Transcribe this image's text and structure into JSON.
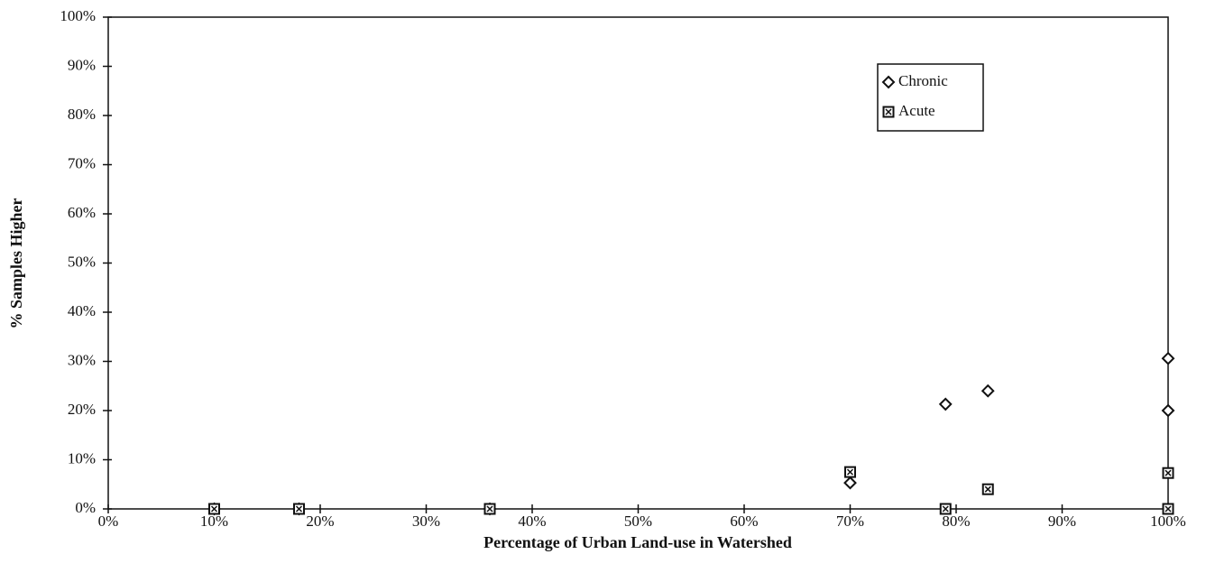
{
  "chart_data": {
    "type": "scatter",
    "xlabel": "Percentage of Urban Land-use in Watershed",
    "ylabel": "% Samples Higher",
    "xlim": [
      0,
      100
    ],
    "ylim": [
      0,
      100
    ],
    "xticks": [
      {
        "value": 0,
        "label": "0%"
      },
      {
        "value": 10,
        "label": "10%"
      },
      {
        "value": 20,
        "label": "20%"
      },
      {
        "value": 30,
        "label": "30%"
      },
      {
        "value": 40,
        "label": "40%"
      },
      {
        "value": 50,
        "label": "50%"
      },
      {
        "value": 60,
        "label": "60%"
      },
      {
        "value": 70,
        "label": "70%"
      },
      {
        "value": 80,
        "label": "80%"
      },
      {
        "value": 90,
        "label": "90%"
      },
      {
        "value": 100,
        "label": "100%"
      }
    ],
    "yticks": [
      {
        "value": 0,
        "label": "0%"
      },
      {
        "value": 10,
        "label": "10%"
      },
      {
        "value": 20,
        "label": "20%"
      },
      {
        "value": 30,
        "label": "30%"
      },
      {
        "value": 40,
        "label": "40%"
      },
      {
        "value": 50,
        "label": "50%"
      },
      {
        "value": 60,
        "label": "60%"
      },
      {
        "value": 70,
        "label": "70%"
      },
      {
        "value": 80,
        "label": "80%"
      },
      {
        "value": 90,
        "label": "90%"
      },
      {
        "value": 100,
        "label": "100%"
      }
    ],
    "legend": "upper right",
    "series": [
      {
        "name": "Chronic",
        "color": "#111111",
        "marker": "diamond",
        "x": [
          10,
          18,
          36,
          70,
          79,
          83,
          100,
          100
        ],
        "values": [
          0,
          0,
          0,
          5.3,
          21.3,
          24,
          30.6,
          20
        ]
      },
      {
        "name": "Acute",
        "color": "#111111",
        "marker": "square",
        "x": [
          10,
          18,
          36,
          70,
          79,
          83,
          100,
          100
        ],
        "values": [
          0,
          0,
          0,
          7.5,
          0,
          4,
          7.3,
          0
        ]
      }
    ]
  }
}
